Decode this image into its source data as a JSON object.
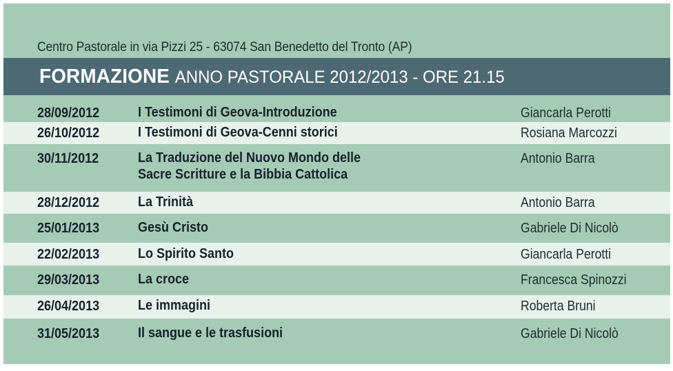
{
  "header": {
    "address": "Centro Pastorale in via Pizzi 25 - 63074 San Benedetto del Tronto (AP)",
    "title_bold": "FORMAZIONE",
    "title_rest": "ANNO PASTORALE 2012/2013 - ORE 21.15"
  },
  "colors": {
    "background": "#a5cbb7",
    "banner": "#4d6973",
    "alt_row": "#e8f1ec",
    "text": "#16212a"
  },
  "schedule": [
    {
      "date": "28/09/2012",
      "title": [
        "I Testimoni di Geova-Introduzione"
      ],
      "speaker": "Giancarla Perotti"
    },
    {
      "date": "26/10/2012",
      "title": [
        "I Testimoni di Geova-Cenni storici"
      ],
      "speaker": "Rosiana Marcozzi"
    },
    {
      "date": "30/11/2012",
      "title": [
        "La Traduzione del Nuovo Mondo delle",
        "Sacre Scritture e la Bibbia Cattolica"
      ],
      "speaker": "Antonio Barra"
    },
    {
      "date": "28/12/2012",
      "title": [
        "La Trinità"
      ],
      "speaker": "Antonio Barra"
    },
    {
      "date": "25/01/2013",
      "title": [
        "Gesù Cristo"
      ],
      "speaker": "Gabriele Di Nicolò"
    },
    {
      "date": "22/02/2013",
      "title": [
        "Lo Spirito Santo"
      ],
      "speaker": "Giancarla Perotti"
    },
    {
      "date": "29/03/2013",
      "title": [
        "La croce"
      ],
      "speaker": "Francesca Spinozzi"
    },
    {
      "date": "26/04/2013",
      "title": [
        "Le immagini"
      ],
      "speaker": "Roberta Bruni"
    },
    {
      "date": "31/05/2013",
      "title": [
        "Il sangue e le trasfusioni"
      ],
      "speaker": "Gabriele Di Nicolò"
    }
  ]
}
